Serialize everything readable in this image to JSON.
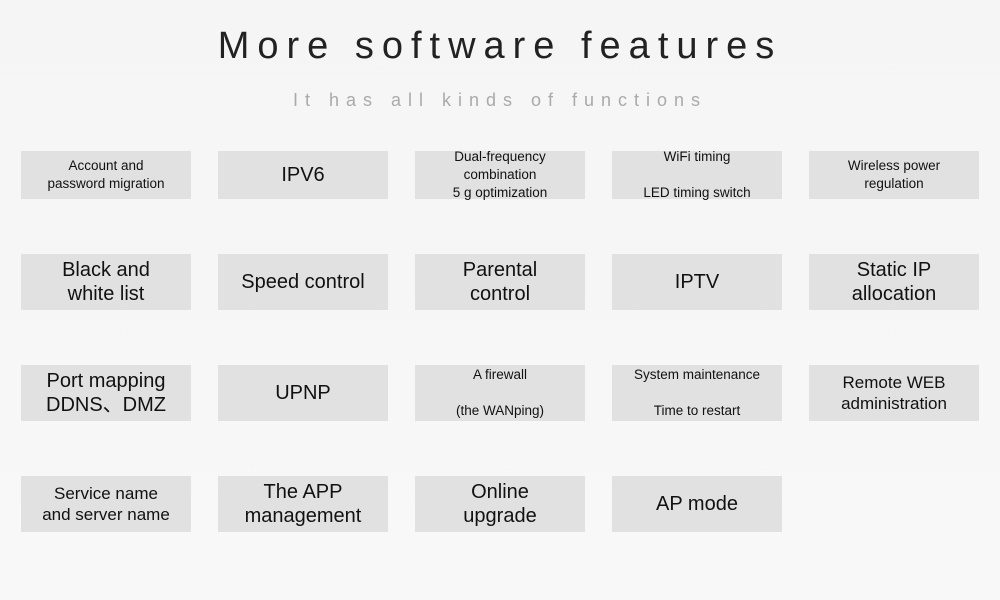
{
  "title": "More software features",
  "subtitle": "It has all kinds of functions",
  "layout": {
    "rows": 4,
    "cols": 5,
    "cell_bg": "#e1e1e1",
    "page_bg": "#f6f6f6",
    "title_color": "#222222",
    "subtitle_color": "#aaaaaa",
    "title_fontsize": 38,
    "subtitle_fontsize": 18
  },
  "cells": {
    "r1c1": "Account and\npassword migration",
    "r1c2": "IPV6",
    "r1c3": "Dual-frequency\ncombination\n5 g optimization",
    "r1c4": "WiFi timing\n\nLED timing switch",
    "r1c5": "Wireless power\nregulation",
    "r2c1": "Black and\nwhite list",
    "r2c2": "Speed control",
    "r2c3": "Parental\ncontrol",
    "r2c4": "IPTV",
    "r2c5": "Static IP\nallocation",
    "r3c1": "Port mapping\nDDNS、DMZ",
    "r3c2": "UPNP",
    "r3c3": "A firewall\n\n(the WANping)",
    "r3c4": "System maintenance\n\nTime to restart",
    "r3c5": "Remote WEB\nadministration",
    "r4c1": "Service name\nand server name",
    "r4c2": "The APP\nmanagement",
    "r4c3": "Online\nupgrade",
    "r4c4": "AP mode",
    "r4c5": ""
  }
}
